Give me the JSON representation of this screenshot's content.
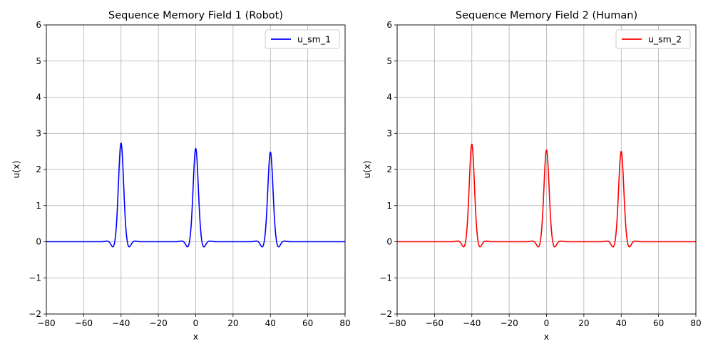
{
  "chart_data": [
    {
      "type": "line",
      "title": "Sequence Memory Field 1 (Robot)",
      "xlabel": "x",
      "ylabel": "u(x)",
      "xlim": [
        -80,
        80
      ],
      "ylim": [
        -2,
        6
      ],
      "xticks": [
        -80,
        -60,
        -40,
        -20,
        0,
        20,
        40,
        60,
        80
      ],
      "yticks": [
        -2,
        -1,
        0,
        1,
        2,
        3,
        4,
        5,
        6
      ],
      "grid": true,
      "legend": "top-right",
      "series": [
        {
          "name": "u_sm_1",
          "color": "#0000ff",
          "peaks": [
            {
              "center": -40,
              "amplitude": 2.73,
              "sigma": 1.35
            },
            {
              "center": 0,
              "amplitude": 2.58,
              "sigma": 1.35
            },
            {
              "center": 40,
              "amplitude": 2.48,
              "sigma": 1.35
            }
          ],
          "undershoot": -0.16
        }
      ]
    },
    {
      "type": "line",
      "title": "Sequence Memory Field 2 (Human)",
      "xlabel": "x",
      "ylabel": "u(x)",
      "xlim": [
        -80,
        80
      ],
      "ylim": [
        -2,
        6
      ],
      "xticks": [
        -80,
        -60,
        -40,
        -20,
        0,
        20,
        40,
        60,
        80
      ],
      "yticks": [
        -2,
        -1,
        0,
        1,
        2,
        3,
        4,
        5,
        6
      ],
      "grid": true,
      "legend": "top-right",
      "series": [
        {
          "name": "u_sm_2",
          "color": "#ff0000",
          "peaks": [
            {
              "center": -40,
              "amplitude": 2.7,
              "sigma": 1.35
            },
            {
              "center": 0,
              "amplitude": 2.54,
              "sigma": 1.35
            },
            {
              "center": 40,
              "amplitude": 2.5,
              "sigma": 1.35
            }
          ],
          "undershoot": -0.16
        }
      ]
    }
  ]
}
